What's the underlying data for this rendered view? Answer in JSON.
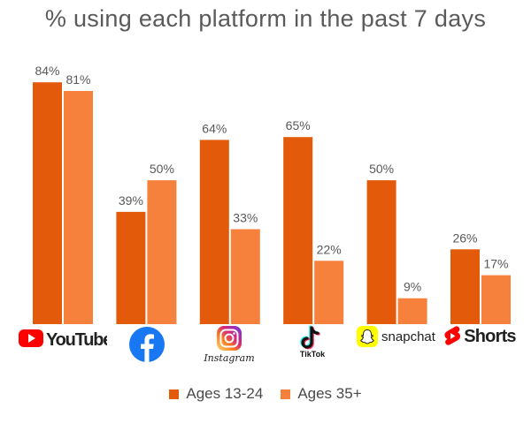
{
  "chart_data": {
    "type": "bar",
    "title": "% using each platform in the past 7 days",
    "categories": [
      "YouTube",
      "Facebook",
      "Instagram",
      "TikTok",
      "snapchat",
      "Shorts"
    ],
    "series": [
      {
        "name": "Ages 13-24",
        "values": [
          84,
          39,
          64,
          65,
          50,
          26
        ],
        "labels": [
          "84%",
          "39%",
          "64%",
          "65%",
          "50%",
          "26%"
        ],
        "color": "#e35a0a"
      },
      {
        "name": "Ages 35+",
        "values": [
          81,
          50,
          33,
          22,
          9,
          17
        ],
        "labels": [
          "81%",
          "50%",
          "33%",
          "22%",
          "9%",
          "17%"
        ],
        "color": "#f5813d"
      }
    ],
    "ylim": [
      0,
      100
    ],
    "grid": false,
    "legend_position": "bottom"
  },
  "logos": {
    "youtube": "YouTube",
    "instagram": "Instagram",
    "tiktok": "TikTok",
    "snapchat": "snapchat",
    "shorts": "Shorts"
  },
  "colors": {
    "youtube_red": "#ff0000",
    "facebook_blue": "#1877f2",
    "snapchat_yellow": "#fffc00"
  }
}
